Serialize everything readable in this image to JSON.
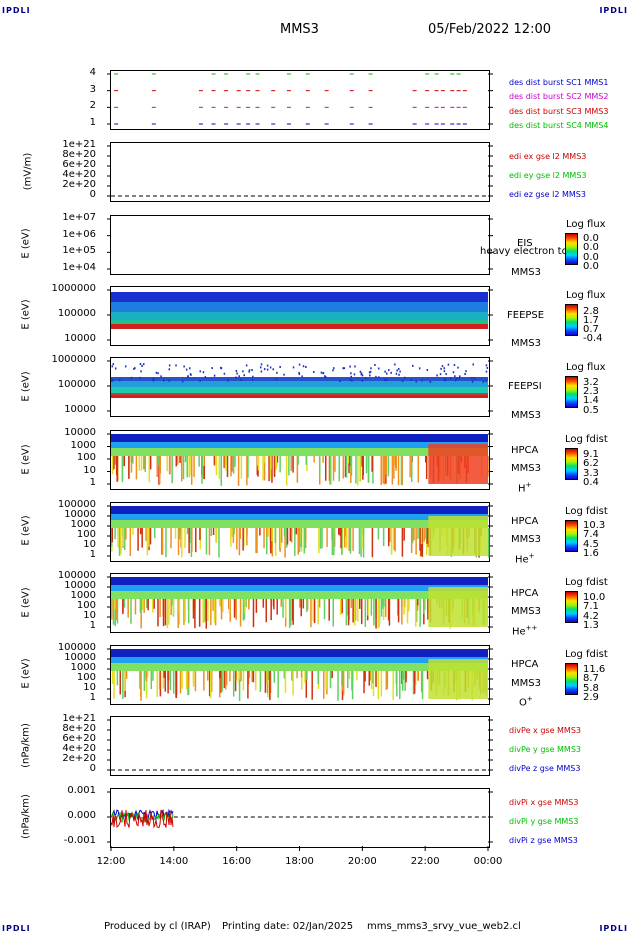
{
  "corners": {
    "tl": "IPDLI",
    "tr": "IPDLI",
    "bl": "IPDLI",
    "br": "IPDLI"
  },
  "header": {
    "spacecraft": "MMS3",
    "datetime": "05/Feb/2022 12:00"
  },
  "footer": {
    "produced": "Produced by cl (IRAP)",
    "printing": "Printing date: 02/Jan/2025",
    "file": "mms_mms3_srvy_vue_web2.cl"
  },
  "chart_data": [
    {
      "type": "scatter",
      "panel": "burst-flags",
      "yticks": [
        "4",
        "3",
        "2",
        "1"
      ],
      "ylim": [
        0.5,
        4.5
      ],
      "xlim": [
        "12:00",
        "00:00"
      ],
      "legend": [
        {
          "label": "des dist burst SC1 MMS1",
          "color": "#0000cc"
        },
        {
          "label": "des dist burst SC2 MMS2",
          "color": "#cc00cc"
        },
        {
          "label": "des dist burst SC3 MMS3",
          "color": "#cc0000"
        },
        {
          "label": "des dist burst SC4 MMS4",
          "color": "#00bb00"
        }
      ],
      "burst_times_hours": [
        12.1,
        13.3,
        14.8,
        15.2,
        15.6,
        16.0,
        16.3,
        16.6,
        17.1,
        17.6,
        18.2,
        18.8,
        19.6,
        20.2,
        21.6,
        22.0,
        22.3,
        22.5,
        22.8,
        23.0,
        23.2
      ]
    },
    {
      "type": "line",
      "panel": "edi-e-field",
      "ylabel": "(mV/m)",
      "yticks": [
        "1e+21",
        "8e+20",
        "6e+20",
        "4e+20",
        "2e+20",
        "0"
      ],
      "ylim": [
        0,
        1e+21
      ],
      "legend": [
        {
          "label": "edi ex gse l2 MMS3",
          "color": "#cc0000"
        },
        {
          "label": "edi ey gse l2 MMS3",
          "color": "#00bb00"
        },
        {
          "label": "edi ez gse l2 MMS3",
          "color": "#0000cc"
        }
      ]
    },
    {
      "type": "heatmap",
      "panel": "eis",
      "ylabel": "E (eV)",
      "yticks": [
        "1e+07",
        "1e+06",
        "1e+05",
        "1e+04"
      ],
      "ylim": [
        10000.0,
        10000000.0
      ],
      "instrument": "EIS",
      "overlay_label": "heavy electron to",
      "spacecraft": "MMS3",
      "colorbar": {
        "title": "Log flux",
        "values": [
          "0.0",
          "0.0",
          "0.0",
          "0.0"
        ]
      }
    },
    {
      "type": "heatmap",
      "panel": "feepse",
      "ylabel": "E (eV)",
      "yticks": [
        "1000000",
        "100000",
        "10000"
      ],
      "ylim": [
        10000.0,
        1000000.0
      ],
      "instrument": "FEEPSE",
      "spacecraft": "MMS3",
      "colorbar": {
        "title": "Log flux",
        "values": [
          "2.8",
          "1.7",
          "0.7",
          "-0.4"
        ]
      }
    },
    {
      "type": "heatmap",
      "panel": "feepsi",
      "ylabel": "E (eV)",
      "yticks": [
        "1000000",
        "100000",
        "10000"
      ],
      "ylim": [
        10000.0,
        1000000.0
      ],
      "instrument": "FEEPSI",
      "spacecraft": "MMS3",
      "colorbar": {
        "title": "Log flux",
        "values": [
          "3.2",
          "2.3",
          "1.4",
          "0.5"
        ]
      }
    },
    {
      "type": "heatmap",
      "panel": "hpca-h",
      "ylabel": "E (eV)",
      "yticks": [
        "10000",
        "1000",
        "100",
        "10",
        "1"
      ],
      "ylim": [
        1,
        40000
      ],
      "instrument": "HPCA",
      "spacecraft": "MMS3",
      "species": "H",
      "charge": "+",
      "colorbar": {
        "title": "Log fdist",
        "values": [
          "9.1",
          "6.2",
          "3.3",
          "0.4"
        ]
      }
    },
    {
      "type": "heatmap",
      "panel": "hpca-he",
      "ylabel": "E (eV)",
      "yticks": [
        "100000",
        "10000",
        "1000",
        "100",
        "10",
        "1"
      ],
      "ylim": [
        1,
        100000
      ],
      "instrument": "HPCA",
      "spacecraft": "MMS3",
      "species": "He",
      "charge": "+",
      "colorbar": {
        "title": "Log fdist",
        "values": [
          "10.3",
          "7.4",
          "4.5",
          "1.6"
        ]
      }
    },
    {
      "type": "heatmap",
      "panel": "hpca-he2",
      "ylabel": "E (eV)",
      "yticks": [
        "100000",
        "10000",
        "1000",
        "100",
        "10",
        "1"
      ],
      "ylim": [
        1,
        100000
      ],
      "instrument": "HPCA",
      "spacecraft": "MMS3",
      "species": "He",
      "charge": "++",
      "colorbar": {
        "title": "Log fdist",
        "values": [
          "10.0",
          "7.1",
          "4.2",
          "1.3"
        ]
      }
    },
    {
      "type": "heatmap",
      "panel": "hpca-o",
      "ylabel": "E (eV)",
      "yticks": [
        "100000",
        "10000",
        "1000",
        "100",
        "10",
        "1"
      ],
      "ylim": [
        1,
        100000
      ],
      "instrument": "HPCA",
      "spacecraft": "MMS3",
      "species": "O",
      "charge": "+",
      "colorbar": {
        "title": "Log fdist",
        "values": [
          "11.6",
          "8.7",
          "5.8",
          "2.9"
        ]
      }
    },
    {
      "type": "line",
      "panel": "divpe",
      "ylabel": "(nPa/km)",
      "yticks": [
        "1e+21",
        "8e+20",
        "6e+20",
        "4e+20",
        "2e+20",
        "0"
      ],
      "ylim": [
        0,
        1e+21
      ],
      "legend": [
        {
          "label": "divPe x gse MMS3",
          "color": "#cc0000"
        },
        {
          "label": "divPe y gse MMS3",
          "color": "#00bb00"
        },
        {
          "label": "divPe z gse MMS3",
          "color": "#0000cc"
        }
      ]
    },
    {
      "type": "line",
      "panel": "divpi",
      "ylabel": "(nPa/km)",
      "yticks": [
        "0.001",
        "0.000",
        "-0.001"
      ],
      "ylim": [
        -0.0015,
        0.0015
      ],
      "data_time_range": [
        "12:00",
        "14:00"
      ],
      "legend": [
        {
          "label": "divPi x gse MMS3",
          "color": "#cc0000"
        },
        {
          "label": "divPi y gse MMS3",
          "color": "#00bb00"
        },
        {
          "label": "divPi z gse MMS3",
          "color": "#0000cc"
        }
      ]
    }
  ],
  "xaxis": {
    "ticks": [
      "12:00",
      "14:00",
      "16:00",
      "18:00",
      "20:00",
      "22:00",
      "00:00"
    ]
  }
}
